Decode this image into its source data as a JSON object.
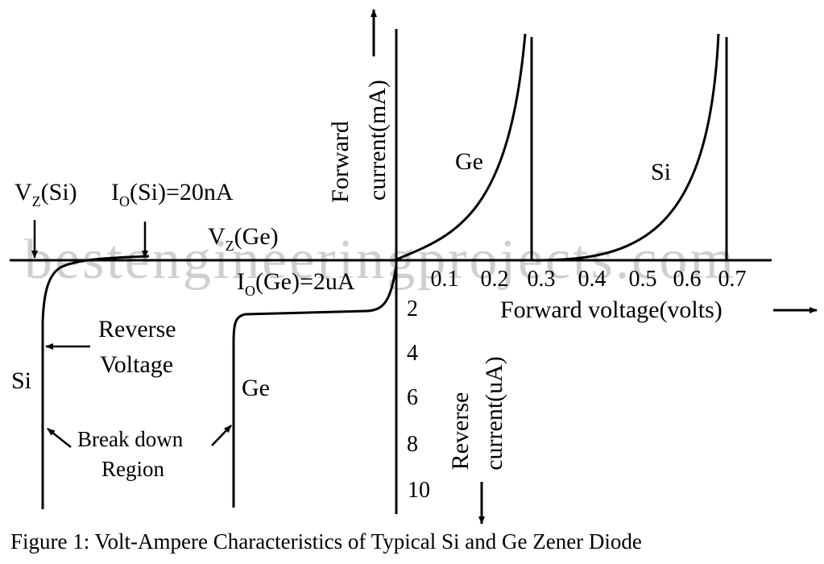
{
  "watermark": "bestengineeringprojects.com",
  "caption": "Figure 1: Volt-Ampere Characteristics of Typical Si and Ge Zener Diode",
  "axes": {
    "forward_current": {
      "line1": "Forward",
      "line2": "current(mA)"
    },
    "forward_voltage": "Forward voltage(volts)",
    "reverse_current": {
      "line1": "Reverse",
      "line2": "current(uA)"
    }
  },
  "x_ticks": [
    "0.1",
    "0.2",
    "0.3",
    "0.4",
    "0.5",
    "0.6",
    "0.7"
  ],
  "y_ticks_reverse": [
    "2",
    "4",
    "6",
    "8",
    "10"
  ],
  "curve_labels": {
    "ge_forward": "Ge",
    "si_forward": "Si",
    "si_reverse": "Si",
    "ge_reverse": "Ge"
  },
  "annotations": {
    "vz_si": {
      "main": "V",
      "sub": "Z",
      "rest": "(Si)"
    },
    "io_si": {
      "main": "I",
      "sub": "O",
      "rest": "(Si)=20nA"
    },
    "vz_ge": {
      "main": "V",
      "sub": "Z",
      "rest": "(Ge)"
    },
    "io_ge": {
      "main": "I",
      "sub": "O",
      "rest": "(Ge)=2uA"
    },
    "reverse_voltage": {
      "line1": "Reverse",
      "line2": "Voltage"
    },
    "breakdown_region": {
      "line1": "Break down",
      "line2": "Region"
    }
  },
  "colors": {
    "ink": "#000000",
    "watermark": "#cfcfcf",
    "background": "#ffffff"
  }
}
